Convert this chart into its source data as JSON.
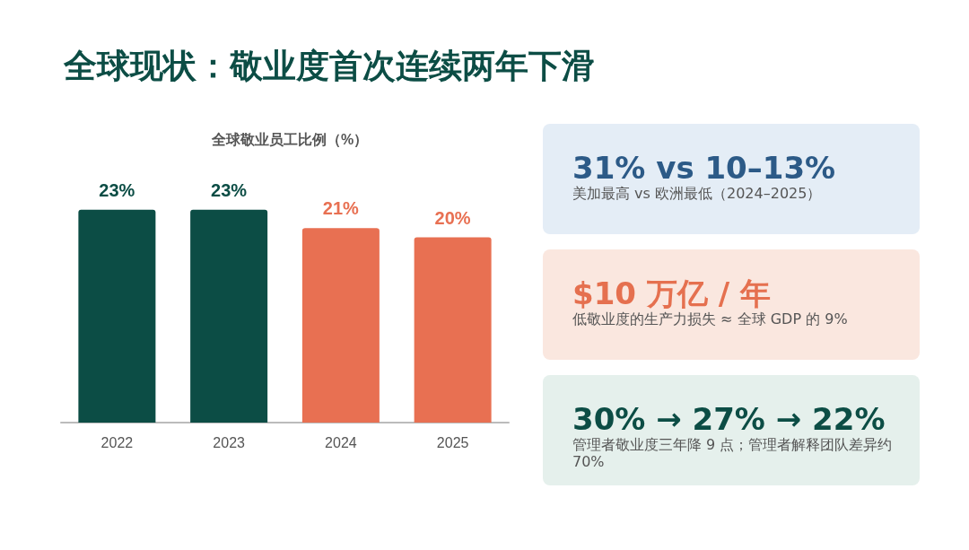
{
  "chart_data": [
    {
      "type": "bar",
      "title": "全球现状：敬业度首次连续两年下滑",
      "subtitle": "全球敬业员工比例（%）",
      "categories": [
        "2022",
        "2023",
        "2024",
        "2025"
      ],
      "values": [
        23,
        23,
        21,
        20
      ],
      "colors": [
        "#0c4d45",
        "#0c4d45",
        "#e87052",
        "#e87052"
      ],
      "value_labels": [
        "23%",
        "23%",
        "21%",
        "20%"
      ]
    },
    {
      "type": "other",
      "annotations": [
        "31%  vs  10–13%",
        "美加最高 vs 欧洲最低（2024–2025）",
        "$10 万亿 / 年",
        "低敬业度的生产力损失 ≈ 全球 GDP 的 9%",
        "30% → 27% → 22%",
        "管理者敬业度三年降 9 点；管理者解释团队差异约 70%"
      ]
    }
  ]
}
